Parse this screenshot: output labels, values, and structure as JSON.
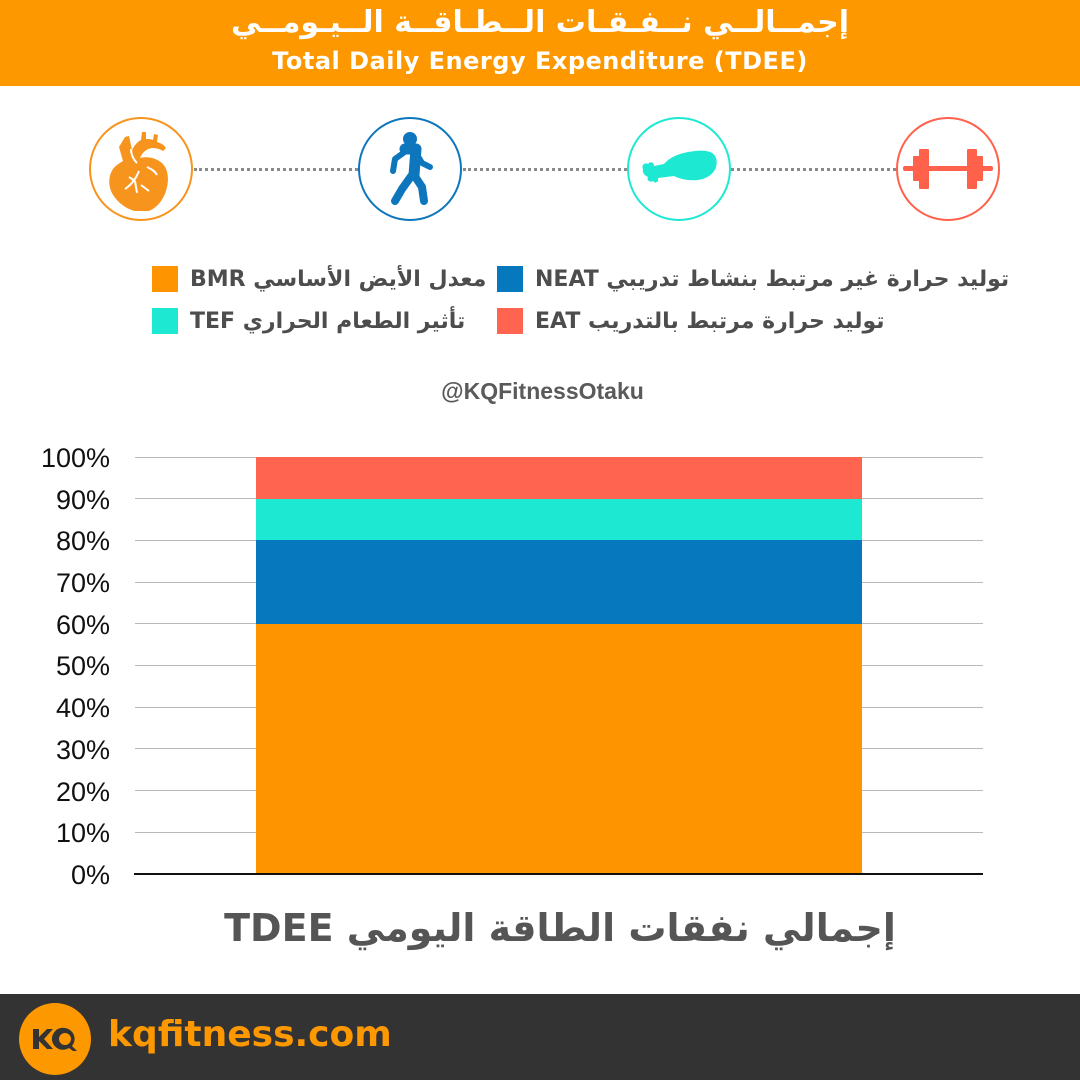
{
  "header": {
    "title_ar": "إجمــالــي نــفـقـات الــطـاقــة الــيـومــي",
    "title_en": "Total Daily Energy Expenditure (TDEE)",
    "background": "#fe9800"
  },
  "icons": [
    {
      "name": "heart-icon",
      "meaning": "BMR",
      "color": "#f7941d"
    },
    {
      "name": "walking-person-icon",
      "meaning": "NEAT",
      "color": "#0d76bd"
    },
    {
      "name": "chicken-leg-icon",
      "meaning": "TEF",
      "color": "#1de9d2"
    },
    {
      "name": "dumbbell-icon",
      "meaning": "EAT",
      "color": "#ff614b"
    }
  ],
  "legend": [
    {
      "key": "BMR",
      "label": "معدل الأيض الأساسي BMR",
      "color": "#fe9400"
    },
    {
      "key": "NEAT",
      "label": "توليد حرارة غير مرتبط بنشاط تدريبي NEAT",
      "color": "#0678bd"
    },
    {
      "key": "TEF",
      "label": "تأثير الطعام الحراري TEF",
      "color": "#1de8d1"
    },
    {
      "key": "EAT",
      "label": "توليد حرارة مرتبط بالتدريب EAT",
      "color": "#ff6450"
    }
  ],
  "handle": "@KQFitnessOtaku",
  "chart_data": {
    "type": "bar",
    "stacked": true,
    "title": "@KQFitnessOtaku",
    "xlabel": "إجمالي نفقات الطاقة اليومي TDEE",
    "ylabel": "",
    "categories": [
      "TDEE"
    ],
    "series": [
      {
        "name": "BMR",
        "values": [
          60
        ],
        "color": "#fe9400"
      },
      {
        "name": "NEAT",
        "values": [
          20
        ],
        "color": "#0678bd"
      },
      {
        "name": "TEF",
        "values": [
          10
        ],
        "color": "#1de8d1"
      },
      {
        "name": "EAT",
        "values": [
          10
        ],
        "color": "#ff6450"
      }
    ],
    "ylim": [
      0,
      100
    ],
    "yticks": [
      "0%",
      "10%",
      "20%",
      "30%",
      "40%",
      "50%",
      "60%",
      "70%",
      "80%",
      "90%",
      "100%"
    ],
    "grid": true,
    "legend_position": "top"
  },
  "x_title": "إجمالي نفقات الطاقة اليومي TDEE",
  "footer": {
    "logo_text": "KQ",
    "site": "kqfitness.com"
  }
}
